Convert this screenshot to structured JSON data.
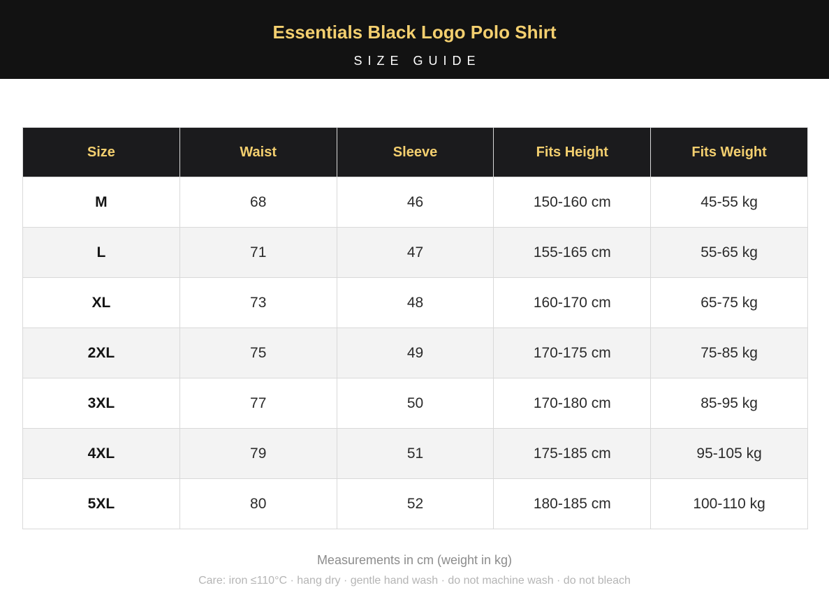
{
  "header": {
    "title": "Essentials Black Logo Polo Shirt",
    "subtitle": "SIZE GUIDE"
  },
  "table": {
    "columns": [
      "Size",
      "Waist",
      "Sleeve",
      "Fits Height",
      "Fits Weight"
    ],
    "rows": [
      [
        "M",
        "68",
        "46",
        "150-160 cm",
        "45-55 kg"
      ],
      [
        "L",
        "71",
        "47",
        "155-165 cm",
        "55-65 kg"
      ],
      [
        "XL",
        "73",
        "48",
        "160-170 cm",
        "65-75 kg"
      ],
      [
        "2XL",
        "75",
        "49",
        "170-175 cm",
        "75-85 kg"
      ],
      [
        "3XL",
        "77",
        "50",
        "170-180 cm",
        "85-95 kg"
      ],
      [
        "4XL",
        "79",
        "51",
        "175-185 cm",
        "95-105 kg"
      ],
      [
        "5XL",
        "80",
        "52",
        "180-185 cm",
        "100-110 kg"
      ]
    ]
  },
  "footer": {
    "measurement_note": "Measurements in cm (weight in kg)",
    "care": "Care: iron ≤110°C · hang dry · gentle hand wash · do not machine wash · do not bleach"
  },
  "colors": {
    "header_background": "#121212",
    "accent_gold": "#f3cf6f",
    "table_header_background": "#1b1b1d",
    "alt_row_background": "#f3f3f3"
  }
}
